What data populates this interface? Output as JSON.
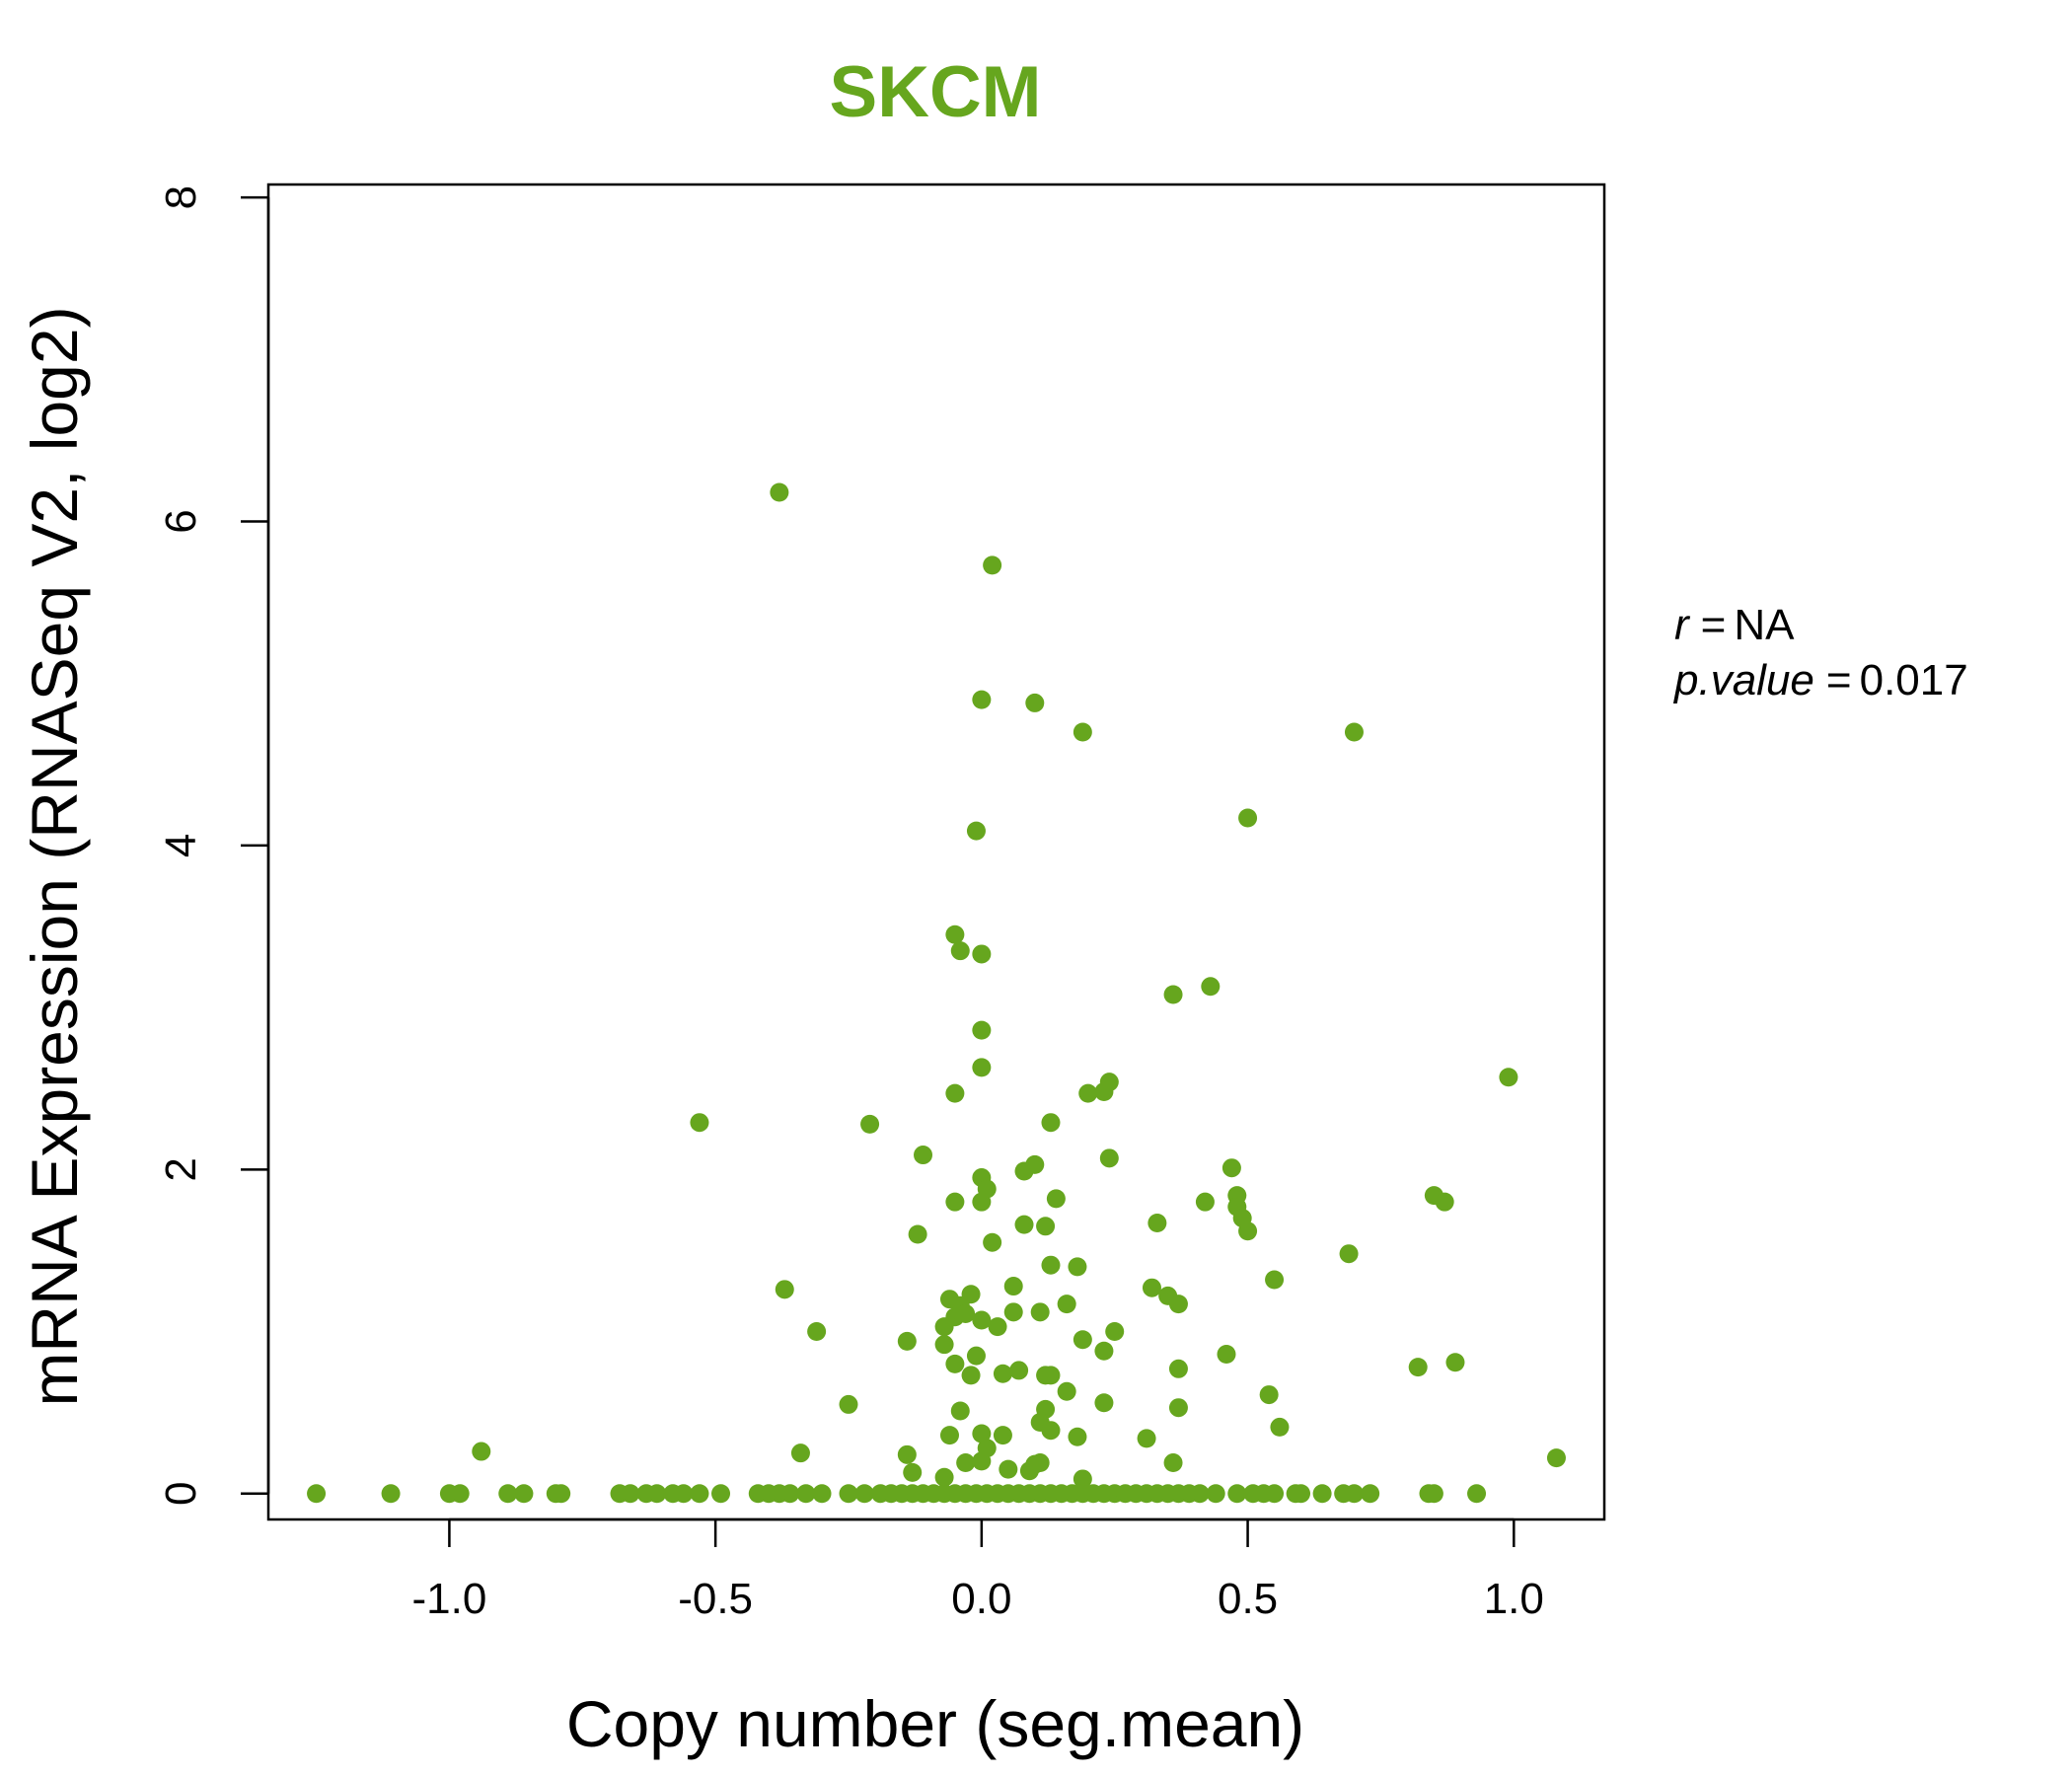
{
  "chart_data": {
    "type": "scatter",
    "title": "SKCM",
    "xlabel": "Copy number (seg.mean)",
    "ylabel": "mRNA Expression (RNASeq V2, log2)",
    "xlim": [
      -1.34,
      1.17
    ],
    "ylim": [
      -0.16,
      8.08
    ],
    "xticks": [
      -1.0,
      -0.5,
      0.0,
      0.5,
      1.0
    ],
    "xtick_labels": [
      "-1.0",
      "-0.5",
      "0.0",
      "0.5",
      "1.0"
    ],
    "yticks": [
      0,
      2,
      4,
      6,
      8
    ],
    "ytick_labels": [
      "0",
      "2",
      "4",
      "6",
      "8"
    ],
    "grid": false,
    "point_color": "#66a61e",
    "title_color": "#66a61e",
    "annotations": {
      "r_label": "r",
      "r_value": "NA",
      "p_label": "p.value",
      "p_value": "0.017",
      "equals": "="
    },
    "points": [
      {
        "x": -0.38,
        "y": 6.18
      },
      {
        "x": 0.02,
        "y": 5.73
      },
      {
        "x": 0.0,
        "y": 4.9
      },
      {
        "x": 0.1,
        "y": 4.88
      },
      {
        "x": 0.19,
        "y": 4.7
      },
      {
        "x": 0.7,
        "y": 4.7
      },
      {
        "x": 0.5,
        "y": 4.17
      },
      {
        "x": -0.01,
        "y": 4.09
      },
      {
        "x": -0.05,
        "y": 3.45
      },
      {
        "x": -0.04,
        "y": 3.35
      },
      {
        "x": 0.0,
        "y": 3.33
      },
      {
        "x": 0.36,
        "y": 3.08
      },
      {
        "x": 0.43,
        "y": 3.13
      },
      {
        "x": 0.0,
        "y": 2.86
      },
      {
        "x": 0.0,
        "y": 2.63
      },
      {
        "x": -0.05,
        "y": 2.47
      },
      {
        "x": 0.2,
        "y": 2.47
      },
      {
        "x": 0.23,
        "y": 2.48
      },
      {
        "x": 0.24,
        "y": 2.54
      },
      {
        "x": 0.99,
        "y": 2.57
      },
      {
        "x": -0.53,
        "y": 2.29
      },
      {
        "x": -0.21,
        "y": 2.28
      },
      {
        "x": 0.13,
        "y": 2.29
      },
      {
        "x": -0.11,
        "y": 2.09
      },
      {
        "x": 0.24,
        "y": 2.07
      },
      {
        "x": 0.1,
        "y": 2.03
      },
      {
        "x": 0.08,
        "y": 1.99
      },
      {
        "x": 0.47,
        "y": 2.01
      },
      {
        "x": 0.0,
        "y": 1.95
      },
      {
        "x": 0.01,
        "y": 1.88
      },
      {
        "x": 0.0,
        "y": 1.8
      },
      {
        "x": -0.05,
        "y": 1.8
      },
      {
        "x": 0.14,
        "y": 1.82
      },
      {
        "x": 0.42,
        "y": 1.8
      },
      {
        "x": 0.48,
        "y": 1.84
      },
      {
        "x": 0.48,
        "y": 1.77
      },
      {
        "x": 0.85,
        "y": 1.84
      },
      {
        "x": 0.87,
        "y": 1.8
      },
      {
        "x": 0.49,
        "y": 1.7
      },
      {
        "x": 0.33,
        "y": 1.67
      },
      {
        "x": 0.08,
        "y": 1.66
      },
      {
        "x": 0.12,
        "y": 1.65
      },
      {
        "x": -0.12,
        "y": 1.6
      },
      {
        "x": 0.5,
        "y": 1.62
      },
      {
        "x": 0.02,
        "y": 1.55
      },
      {
        "x": 0.69,
        "y": 1.48
      },
      {
        "x": 0.13,
        "y": 1.41
      },
      {
        "x": 0.18,
        "y": 1.4
      },
      {
        "x": 0.55,
        "y": 1.32
      },
      {
        "x": -0.37,
        "y": 1.26
      },
      {
        "x": 0.06,
        "y": 1.28
      },
      {
        "x": 0.32,
        "y": 1.27
      },
      {
        "x": 0.35,
        "y": 1.22
      },
      {
        "x": -0.06,
        "y": 1.2
      },
      {
        "x": -0.02,
        "y": 1.23
      },
      {
        "x": -0.04,
        "y": 1.16
      },
      {
        "x": 0.16,
        "y": 1.17
      },
      {
        "x": 0.37,
        "y": 1.17
      },
      {
        "x": -0.05,
        "y": 1.09
      },
      {
        "x": -0.03,
        "y": 1.11
      },
      {
        "x": 0.06,
        "y": 1.12
      },
      {
        "x": 0.11,
        "y": 1.12
      },
      {
        "x": -0.07,
        "y": 1.03
      },
      {
        "x": 0.0,
        "y": 1.07
      },
      {
        "x": 0.03,
        "y": 1.03
      },
      {
        "x": -0.31,
        "y": 1.0
      },
      {
        "x": 0.25,
        "y": 1.0
      },
      {
        "x": -0.14,
        "y": 0.94
      },
      {
        "x": -0.07,
        "y": 0.92
      },
      {
        "x": 0.19,
        "y": 0.95
      },
      {
        "x": 0.23,
        "y": 0.88
      },
      {
        "x": 0.46,
        "y": 0.86
      },
      {
        "x": -0.01,
        "y": 0.85
      },
      {
        "x": -0.05,
        "y": 0.8
      },
      {
        "x": -0.02,
        "y": 0.73
      },
      {
        "x": 0.04,
        "y": 0.74
      },
      {
        "x": 0.07,
        "y": 0.76
      },
      {
        "x": 0.12,
        "y": 0.73
      },
      {
        "x": 0.13,
        "y": 0.73
      },
      {
        "x": 0.37,
        "y": 0.77
      },
      {
        "x": 0.82,
        "y": 0.78
      },
      {
        "x": 0.89,
        "y": 0.81
      },
      {
        "x": 0.16,
        "y": 0.63
      },
      {
        "x": 0.54,
        "y": 0.61
      },
      {
        "x": -0.25,
        "y": 0.55
      },
      {
        "x": 0.23,
        "y": 0.56
      },
      {
        "x": 0.37,
        "y": 0.53
      },
      {
        "x": -0.04,
        "y": 0.51
      },
      {
        "x": 0.12,
        "y": 0.52
      },
      {
        "x": 0.11,
        "y": 0.44
      },
      {
        "x": 0.13,
        "y": 0.39
      },
      {
        "x": 0.56,
        "y": 0.41
      },
      {
        "x": -0.06,
        "y": 0.36
      },
      {
        "x": 0.0,
        "y": 0.37
      },
      {
        "x": 0.04,
        "y": 0.36
      },
      {
        "x": 0.18,
        "y": 0.35
      },
      {
        "x": 0.31,
        "y": 0.34
      },
      {
        "x": -0.94,
        "y": 0.26
      },
      {
        "x": -0.34,
        "y": 0.25
      },
      {
        "x": -0.14,
        "y": 0.24
      },
      {
        "x": 0.01,
        "y": 0.28
      },
      {
        "x": 1.08,
        "y": 0.22
      },
      {
        "x": 0.0,
        "y": 0.2
      },
      {
        "x": -0.03,
        "y": 0.19
      },
      {
        "x": 0.1,
        "y": 0.18
      },
      {
        "x": 0.11,
        "y": 0.19
      },
      {
        "x": 0.36,
        "y": 0.19
      },
      {
        "x": -0.13,
        "y": 0.13
      },
      {
        "x": 0.05,
        "y": 0.15
      },
      {
        "x": 0.09,
        "y": 0.14
      },
      {
        "x": -0.07,
        "y": 0.1
      },
      {
        "x": 0.19,
        "y": 0.09
      },
      {
        "x": -1.25,
        "y": 0
      },
      {
        "x": -1.11,
        "y": 0
      },
      {
        "x": -1.0,
        "y": 0
      },
      {
        "x": -0.98,
        "y": 0
      },
      {
        "x": -0.89,
        "y": 0
      },
      {
        "x": -0.86,
        "y": 0
      },
      {
        "x": -0.8,
        "y": 0
      },
      {
        "x": -0.79,
        "y": 0
      },
      {
        "x": -0.68,
        "y": 0
      },
      {
        "x": -0.66,
        "y": 0
      },
      {
        "x": -0.63,
        "y": 0
      },
      {
        "x": -0.61,
        "y": 0
      },
      {
        "x": -0.58,
        "y": 0
      },
      {
        "x": -0.56,
        "y": 0
      },
      {
        "x": -0.53,
        "y": 0
      },
      {
        "x": -0.49,
        "y": 0
      },
      {
        "x": -0.42,
        "y": 0
      },
      {
        "x": -0.4,
        "y": 0
      },
      {
        "x": -0.38,
        "y": 0
      },
      {
        "x": -0.36,
        "y": 0
      },
      {
        "x": -0.33,
        "y": 0
      },
      {
        "x": -0.3,
        "y": 0
      },
      {
        "x": -0.25,
        "y": 0
      },
      {
        "x": -0.22,
        "y": 0
      },
      {
        "x": -0.19,
        "y": 0
      },
      {
        "x": -0.17,
        "y": 0
      },
      {
        "x": -0.15,
        "y": 0
      },
      {
        "x": -0.13,
        "y": 0
      },
      {
        "x": -0.11,
        "y": 0
      },
      {
        "x": -0.09,
        "y": 0
      },
      {
        "x": -0.07,
        "y": 0
      },
      {
        "x": -0.05,
        "y": 0
      },
      {
        "x": -0.03,
        "y": 0
      },
      {
        "x": -0.01,
        "y": 0
      },
      {
        "x": 0.01,
        "y": 0
      },
      {
        "x": 0.03,
        "y": 0
      },
      {
        "x": 0.05,
        "y": 0
      },
      {
        "x": 0.07,
        "y": 0
      },
      {
        "x": 0.09,
        "y": 0
      },
      {
        "x": 0.11,
        "y": 0
      },
      {
        "x": 0.13,
        "y": 0
      },
      {
        "x": 0.15,
        "y": 0
      },
      {
        "x": 0.17,
        "y": 0
      },
      {
        "x": 0.19,
        "y": 0
      },
      {
        "x": 0.21,
        "y": 0
      },
      {
        "x": 0.23,
        "y": 0
      },
      {
        "x": 0.25,
        "y": 0
      },
      {
        "x": 0.27,
        "y": 0
      },
      {
        "x": 0.29,
        "y": 0
      },
      {
        "x": 0.31,
        "y": 0
      },
      {
        "x": 0.33,
        "y": 0
      },
      {
        "x": 0.35,
        "y": 0
      },
      {
        "x": 0.37,
        "y": 0
      },
      {
        "x": 0.39,
        "y": 0
      },
      {
        "x": 0.41,
        "y": 0
      },
      {
        "x": 0.44,
        "y": 0
      },
      {
        "x": 0.48,
        "y": 0
      },
      {
        "x": 0.51,
        "y": 0
      },
      {
        "x": 0.53,
        "y": 0
      },
      {
        "x": 0.55,
        "y": 0
      },
      {
        "x": 0.59,
        "y": 0
      },
      {
        "x": 0.6,
        "y": 0
      },
      {
        "x": 0.64,
        "y": 0
      },
      {
        "x": 0.68,
        "y": 0
      },
      {
        "x": 0.7,
        "y": 0
      },
      {
        "x": 0.73,
        "y": 0
      },
      {
        "x": 0.84,
        "y": 0
      },
      {
        "x": 0.85,
        "y": 0
      },
      {
        "x": 0.93,
        "y": 0
      }
    ]
  }
}
